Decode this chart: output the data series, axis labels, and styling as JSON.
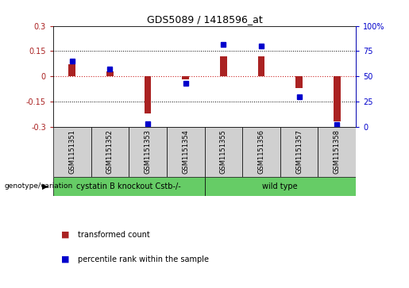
{
  "title": "GDS5089 / 1418596_at",
  "samples": [
    "GSM1151351",
    "GSM1151352",
    "GSM1151353",
    "GSM1151354",
    "GSM1151355",
    "GSM1151356",
    "GSM1151357",
    "GSM1151358"
  ],
  "transformed_counts": [
    0.07,
    0.03,
    -0.22,
    -0.02,
    0.12,
    0.12,
    -0.07,
    -0.27
  ],
  "percentile_ranks": [
    65,
    57,
    3,
    43,
    82,
    80,
    30,
    2
  ],
  "ylim_left": [
    -0.3,
    0.3
  ],
  "ylim_right": [
    0,
    100
  ],
  "yticks_left": [
    -0.3,
    -0.15,
    0,
    0.15,
    0.3
  ],
  "yticks_right": [
    0,
    25,
    50,
    75,
    100
  ],
  "hlines": [
    0.15,
    -0.15
  ],
  "group_row_label": "genotype/variation",
  "groups": [
    {
      "label": "cystatin B knockout Cstb-/-",
      "start": 0,
      "end": 3,
      "color": "#66cc66"
    },
    {
      "label": "wild type",
      "start": 4,
      "end": 7,
      "color": "#66cc66"
    }
  ],
  "legend_items": [
    {
      "color": "#aa2222",
      "label": "transformed count"
    },
    {
      "color": "#0000cc",
      "label": "percentile rank within the sample"
    }
  ],
  "bar_color": "#aa2222",
  "dot_color": "#0000cc",
  "bar_width": 0.18,
  "background_color": "#ffffff",
  "plot_bg": "#ffffff",
  "sample_box_color": "#d0d0d0",
  "zero_line_color": "#cc2222",
  "dotted_line_color": "#000000"
}
